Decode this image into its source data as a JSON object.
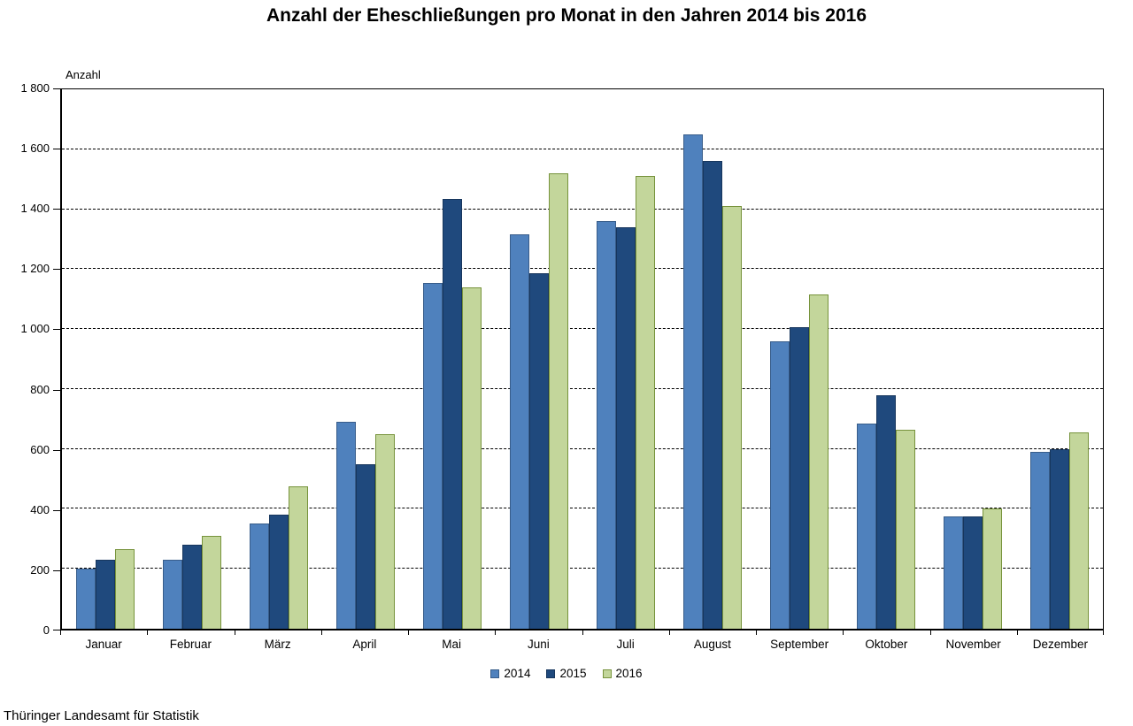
{
  "title": "Anzahl der Eheschließungen pro Monat in den Jahren 2014 bis 2016",
  "y_axis_title": "Anzahl",
  "footer": "Thüringer Landesamt für Statistik",
  "chart_data": {
    "type": "bar",
    "title": "Anzahl der Eheschließungen pro Monat in den Jahren 2014 bis 2016",
    "xlabel": "",
    "ylabel": "Anzahl",
    "ylim": [
      0,
      1800
    ],
    "ytick_step": 200,
    "ytick_labels": [
      "0",
      "200",
      "400",
      "600",
      "800",
      "1 000",
      "1 200",
      "1 400",
      "1 600",
      "1 800"
    ],
    "grid": "horizontal-dashed",
    "legend_position": "bottom-center",
    "categories": [
      "Januar",
      "Februar",
      "März",
      "April",
      "Mai",
      "Juni",
      "Juli",
      "August",
      "September",
      "Oktober",
      "November",
      "Dezember"
    ],
    "series": [
      {
        "name": "2014",
        "color": "#4F81BD",
        "border_color": "#385D8A",
        "values": [
          200,
          230,
          350,
          690,
          1155,
          1315,
          1360,
          1650,
          960,
          685,
          375,
          590
        ]
      },
      {
        "name": "2015",
        "color": "#1F497D",
        "border_color": "#17365D",
        "values": [
          230,
          280,
          380,
          550,
          1435,
          1185,
          1340,
          1560,
          1005,
          780,
          375,
          600
        ]
      },
      {
        "name": "2016",
        "color": "#C3D69B",
        "border_color": "#77933C",
        "values": [
          265,
          310,
          475,
          650,
          1140,
          1520,
          1510,
          1410,
          1115,
          665,
          400,
          655
        ]
      }
    ]
  }
}
